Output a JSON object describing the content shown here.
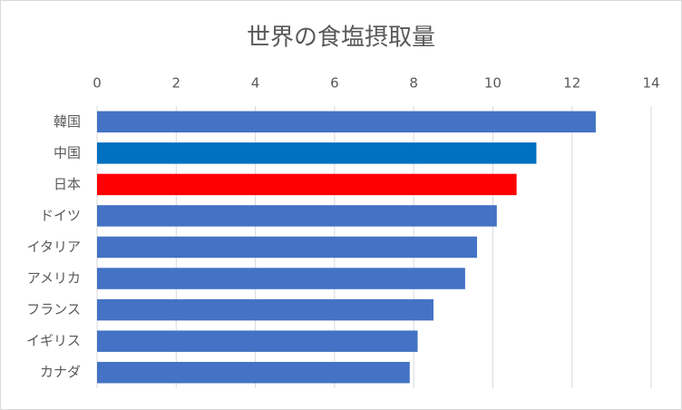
{
  "chart_data": {
    "type": "bar",
    "orientation": "horizontal",
    "title": "世界の食塩摂取量",
    "categories": [
      "韓国",
      "中国",
      "日本",
      "ドイツ",
      "イタリア",
      "アメリカ",
      "フランス",
      "イギリス",
      "カナダ"
    ],
    "values": [
      12.6,
      11.1,
      10.6,
      10.1,
      9.6,
      9.3,
      8.5,
      8.1,
      7.9
    ],
    "colors": [
      "#4472c4",
      "#0070c0",
      "#ff0000",
      "#4472c4",
      "#4472c4",
      "#4472c4",
      "#4472c4",
      "#4472c4",
      "#4472c4"
    ],
    "xlim": [
      0,
      14
    ],
    "xticks": [
      0,
      2,
      4,
      6,
      8,
      10,
      12,
      14
    ],
    "grid": true
  }
}
